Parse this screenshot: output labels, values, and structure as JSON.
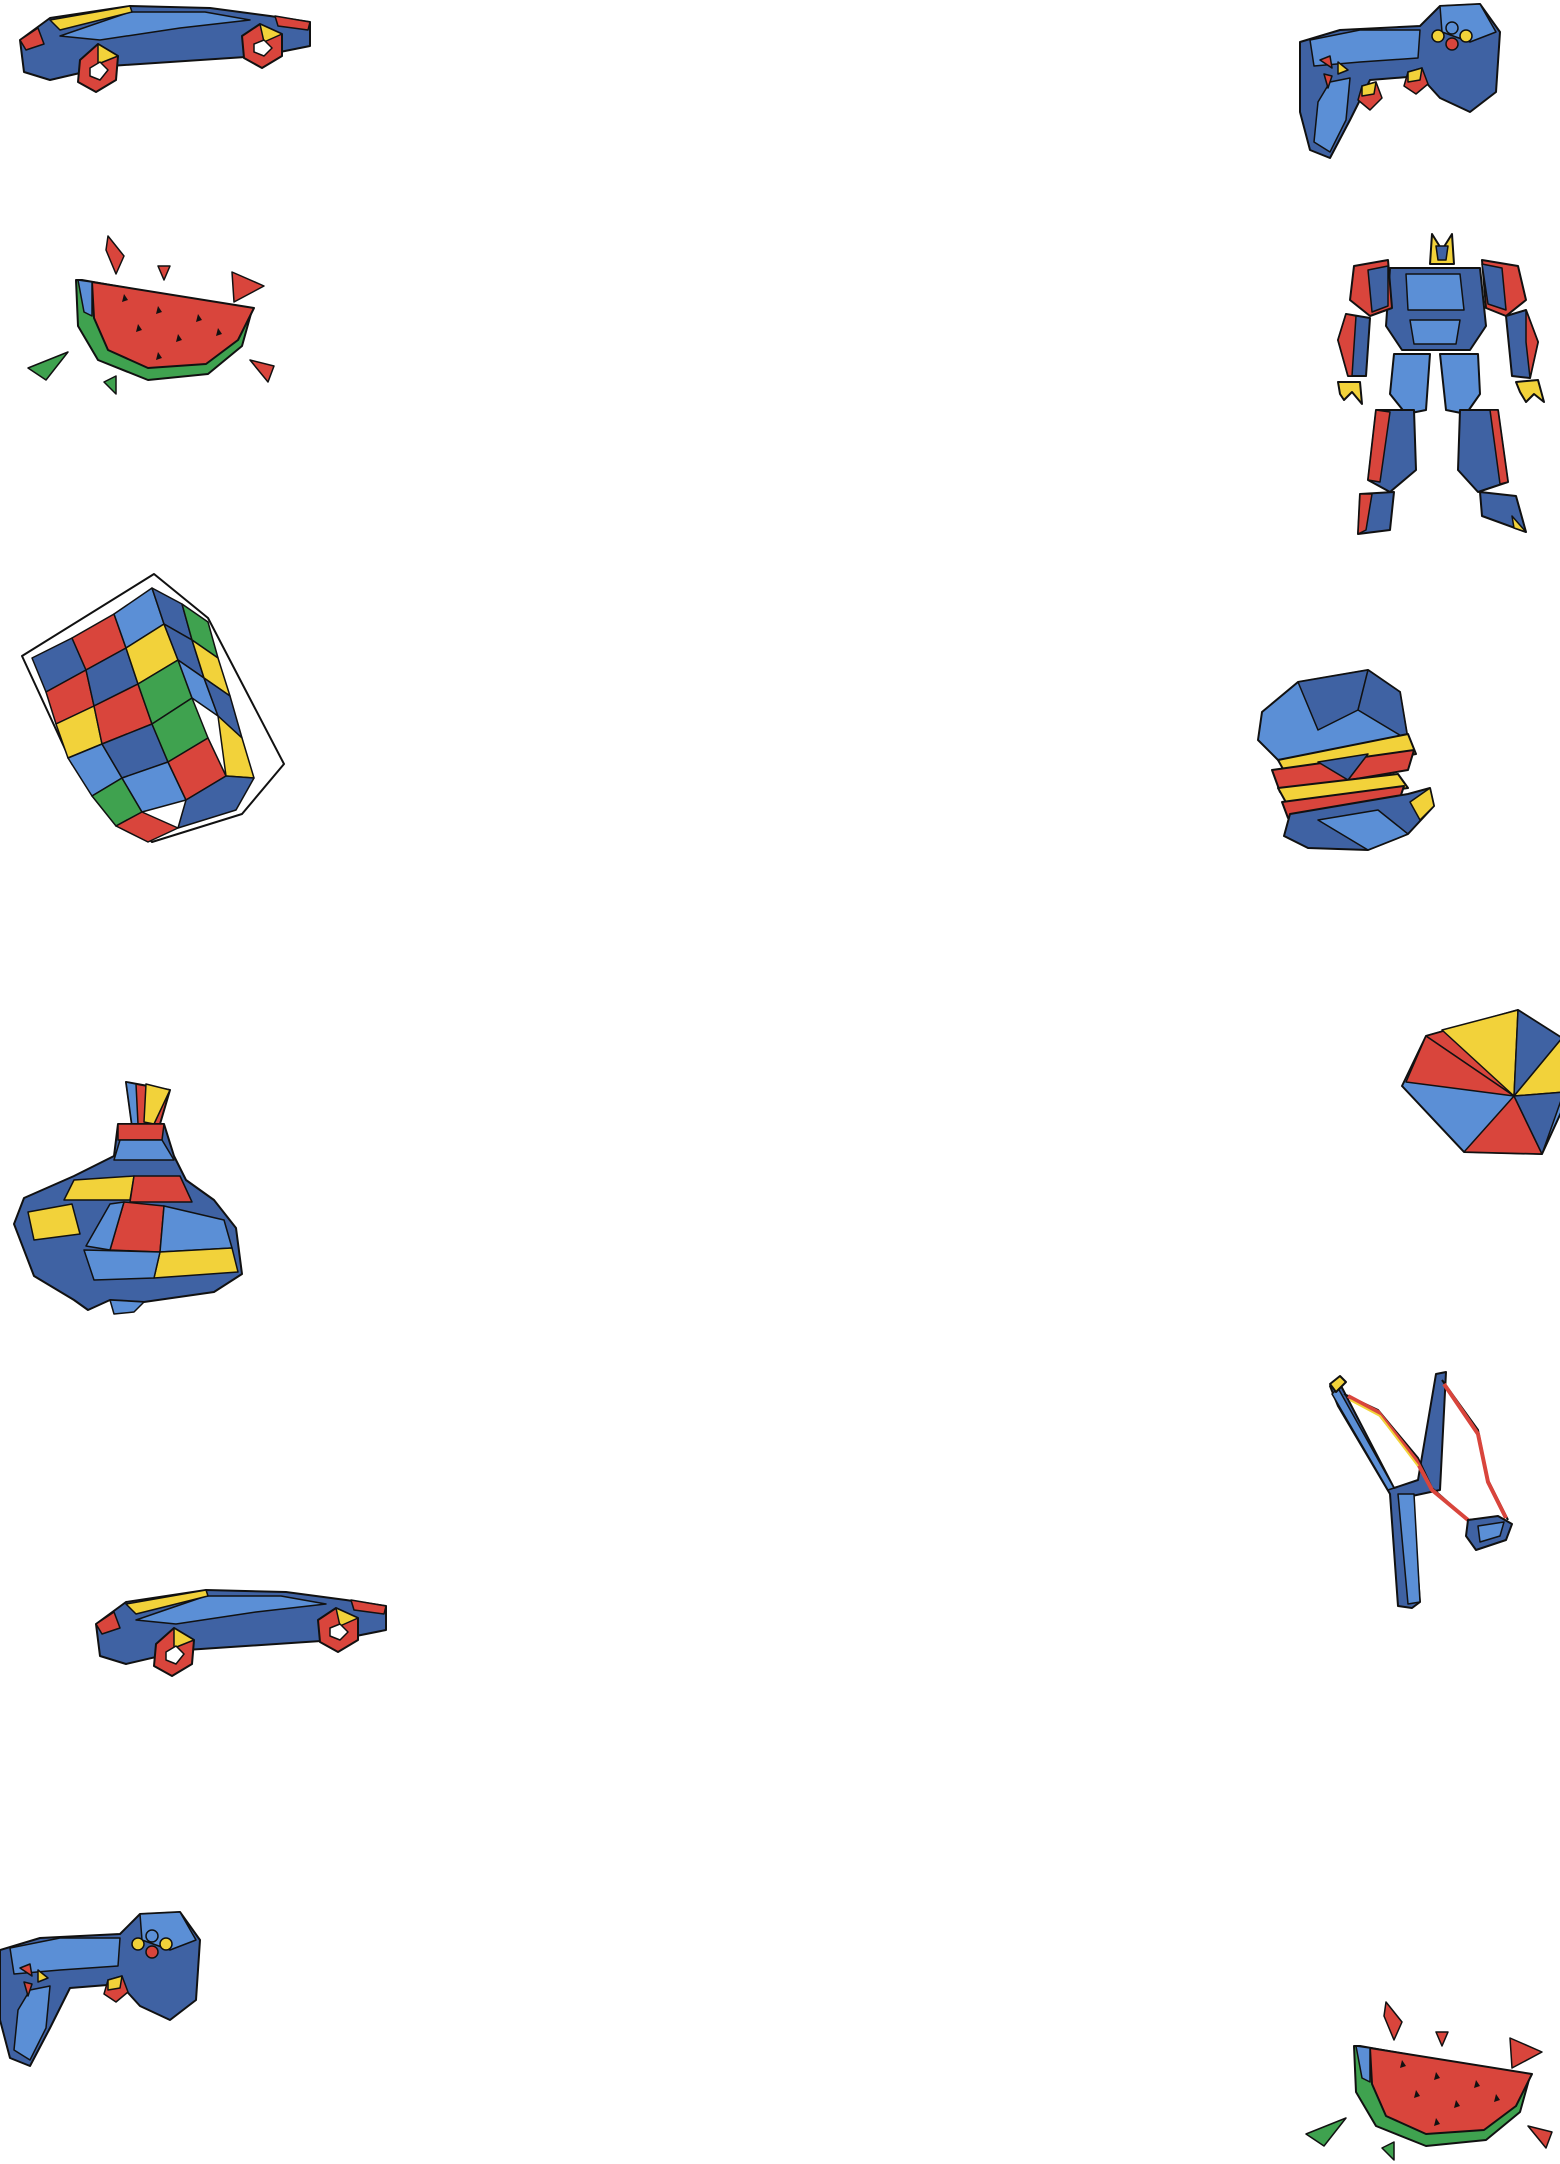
{
  "page": {
    "background": "#ffffff",
    "style": "low-poly toy illustrations border pattern"
  },
  "palette": {
    "blue_dark": "#3f62a3",
    "blue_light": "#5b8fd6",
    "red": "#d9453c",
    "yellow": "#f2d23a",
    "green": "#3fa24f",
    "outline": "#111111"
  },
  "illustrations": [
    {
      "icon": "sports-car-icon"
    },
    {
      "icon": "game-controller-icon"
    },
    {
      "icon": "watermelon-slice-icon"
    },
    {
      "icon": "robot-icon"
    },
    {
      "icon": "rubiks-cube-icon"
    },
    {
      "icon": "burger-icon"
    },
    {
      "icon": "beach-ball-icon"
    },
    {
      "icon": "spinning-top-icon"
    },
    {
      "icon": "slingshot-icon"
    },
    {
      "icon": "sports-car-icon"
    },
    {
      "icon": "game-controller-icon"
    },
    {
      "icon": "watermelon-slice-icon"
    }
  ]
}
